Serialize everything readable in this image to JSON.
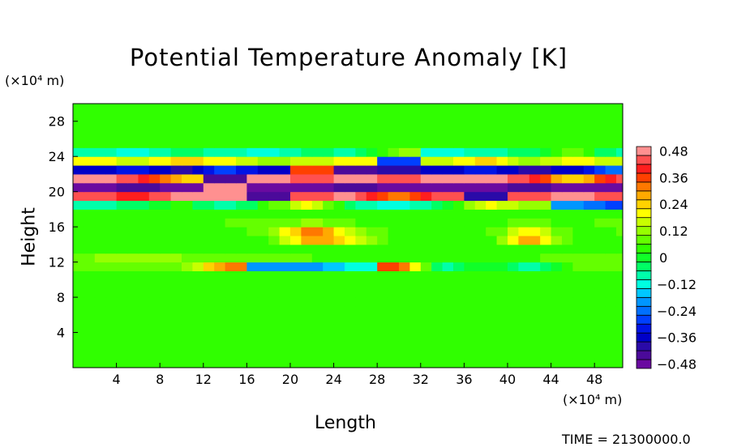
{
  "chart_data": {
    "type": "heatmap",
    "title": "Potential Temperature Anomaly [K]",
    "xlabel": "Length",
    "ylabel": "Height",
    "x_unit": "(×10⁴ m)",
    "y_unit": "(×10⁴ m)",
    "xlim": [
      0,
      50.6
    ],
    "ylim": [
      0,
      30
    ],
    "x_ticks": [
      "4",
      "8",
      "12",
      "16",
      "20",
      "24",
      "28",
      "32",
      "36",
      "40",
      "44",
      "48"
    ],
    "y_ticks": [
      "4",
      "8",
      "12",
      "16",
      "20",
      "24",
      "28"
    ],
    "x": [
      2,
      6,
      10,
      14,
      18,
      22,
      26,
      30,
      34,
      38,
      42,
      46,
      50
    ],
    "y": [
      0.5,
      1.5,
      2.5,
      3.5,
      4.5,
      5.5,
      6.5,
      7.5,
      8.5,
      9.5,
      10.5,
      11.5,
      12.5,
      13.5,
      14.5,
      15.5,
      16.5,
      17.5,
      18.5,
      19.5,
      20.5,
      21.5,
      22.5,
      23.5,
      24.5,
      25.5,
      26.5,
      27.5,
      28.5,
      29.5
    ],
    "z": [
      [
        0.02,
        0.02,
        0.02,
        0.02,
        0.02,
        0.02,
        0.02,
        0.02,
        0.02,
        0.02,
        0.02,
        0.02,
        0.02
      ],
      [
        0.02,
        0.02,
        0.02,
        0.02,
        0.02,
        0.02,
        0.02,
        0.02,
        0.02,
        0.02,
        0.02,
        0.02,
        0.02
      ],
      [
        0.02,
        0.02,
        0.02,
        0.02,
        0.02,
        0.02,
        0.02,
        0.02,
        0.02,
        0.02,
        0.02,
        0.02,
        0.02
      ],
      [
        0.02,
        0.02,
        0.02,
        0.02,
        0.02,
        0.02,
        0.02,
        0.02,
        0.02,
        0.02,
        0.02,
        0.02,
        0.02
      ],
      [
        0.02,
        0.02,
        0.02,
        0.02,
        0.02,
        0.02,
        0.02,
        0.02,
        0.02,
        0.02,
        0.02,
        0.02,
        0.02
      ],
      [
        0.02,
        0.02,
        0.02,
        0.02,
        0.02,
        0.02,
        0.02,
        0.02,
        0.02,
        0.02,
        0.02,
        0.02,
        0.02
      ],
      [
        0.02,
        0.02,
        0.02,
        0.02,
        0.02,
        0.02,
        0.02,
        0.02,
        0.02,
        0.02,
        0.02,
        0.02,
        0.02
      ],
      [
        0.02,
        0.02,
        0.02,
        0.02,
        0.02,
        0.02,
        0.02,
        0.02,
        0.02,
        0.02,
        0.02,
        0.02,
        0.02
      ],
      [
        0.02,
        0.02,
        0.02,
        0.02,
        0.02,
        0.02,
        0.02,
        0.02,
        0.02,
        0.02,
        0.02,
        0.02,
        0.02
      ],
      [
        0.02,
        0.02,
        0.02,
        0.02,
        0.02,
        0.02,
        0.02,
        0.02,
        0.02,
        0.02,
        0.02,
        0.02,
        0.02
      ],
      [
        0.04,
        0.04,
        0.04,
        0.04,
        0.02,
        0.02,
        0.02,
        0.02,
        0.02,
        0.02,
        0.02,
        0.04,
        0.04
      ],
      [
        0.08,
        0.1,
        0.1,
        0.3,
        -0.2,
        -0.2,
        -0.12,
        0.36,
        -0.08,
        0.02,
        -0.08,
        0.06,
        0.08
      ],
      [
        0.1,
        0.12,
        0.1,
        0.08,
        0.06,
        0.06,
        0.04,
        0.04,
        0.04,
        0.04,
        0.04,
        0.1,
        0.1
      ],
      [
        0.02,
        0.02,
        0.02,
        0.04,
        0.04,
        0.06,
        0.04,
        0.02,
        0.02,
        0.02,
        0.04,
        0.04,
        0.02
      ],
      [
        0.02,
        0.02,
        0.04,
        0.04,
        0.06,
        0.3,
        0.2,
        0.02,
        0.02,
        0.02,
        0.3,
        0.04,
        0.02
      ],
      [
        0.02,
        0.02,
        0.04,
        0.04,
        0.08,
        0.36,
        0.12,
        0.04,
        0.02,
        0.04,
        0.2,
        0.04,
        0.06
      ],
      [
        0.04,
        0.04,
        0.04,
        0.06,
        0.06,
        0.12,
        0.06,
        0.04,
        0.04,
        0.04,
        0.08,
        0.04,
        0.08
      ],
      [
        0.04,
        0.06,
        0.04,
        0.04,
        0.04,
        0.06,
        0.04,
        0.04,
        0.04,
        0.04,
        0.04,
        0.04,
        0.04
      ],
      [
        -0.08,
        -0.04,
        0.04,
        -0.12,
        0.04,
        0.2,
        -0.08,
        -0.12,
        -0.04,
        0.2,
        0.12,
        -0.2,
        -0.28
      ],
      [
        0.44,
        0.4,
        0.48,
        0.48,
        -0.44,
        0.44,
        0.48,
        0.28,
        0.44,
        -0.4,
        0.44,
        0.48,
        0.44
      ],
      [
        -0.48,
        -0.44,
        -0.48,
        0.48,
        -0.48,
        -0.48,
        -0.44,
        -0.48,
        -0.48,
        -0.48,
        -0.44,
        -0.48,
        -0.48
      ],
      [
        0.48,
        0.44,
        0.24,
        -0.44,
        0.48,
        0.44,
        0.48,
        0.44,
        0.48,
        0.48,
        0.44,
        0.2,
        0.44
      ],
      [
        -0.36,
        -0.32,
        -0.4,
        -0.28,
        -0.36,
        0.36,
        -0.44,
        -0.4,
        -0.36,
        -0.32,
        -0.4,
        -0.36,
        -0.24
      ],
      [
        0.2,
        0.16,
        0.24,
        0.2,
        0.12,
        0.16,
        0.2,
        -0.28,
        0.16,
        0.24,
        0.12,
        0.2,
        0.16
      ],
      [
        -0.08,
        -0.12,
        -0.04,
        -0.08,
        -0.12,
        -0.04,
        -0.08,
        0.12,
        -0.12,
        -0.08,
        -0.04,
        0.08,
        -0.08
      ],
      [
        0.04,
        0.04,
        0.06,
        0.04,
        0.04,
        0.04,
        0.04,
        0.04,
        0.04,
        0.04,
        0.04,
        0.04,
        0.04
      ],
      [
        0.02,
        0.02,
        0.02,
        0.02,
        0.02,
        0.02,
        0.02,
        0.02,
        0.02,
        0.02,
        0.02,
        0.02,
        0.02
      ],
      [
        0.02,
        0.02,
        0.02,
        0.02,
        0.02,
        0.02,
        0.02,
        0.02,
        0.02,
        0.02,
        0.02,
        0.02,
        0.02
      ],
      [
        0.02,
        0.02,
        0.02,
        0.02,
        0.02,
        0.02,
        0.02,
        0.02,
        0.02,
        0.02,
        0.02,
        0.02,
        0.02
      ],
      [
        0.02,
        0.02,
        0.02,
        0.02,
        0.02,
        0.02,
        0.02,
        0.02,
        0.02,
        0.02,
        0.02,
        0.02,
        0.02
      ]
    ],
    "colorbar": {
      "labels": [
        "0.48",
        "0.36",
        "0.24",
        "0.12",
        "0",
        "−0.12",
        "−0.24",
        "−0.36",
        "−0.48"
      ],
      "min": -0.48,
      "max": 0.48,
      "step": 0.04,
      "colors": [
        "#6a0aa0",
        "#4b0a9a",
        "#2a0aa8",
        "#0000c8",
        "#0014e6",
        "#0040ff",
        "#0070ff",
        "#0096ff",
        "#00c8ff",
        "#00ffe0",
        "#00ffaa",
        "#00ff64",
        "#10ff28",
        "#30ff00",
        "#64ff00",
        "#96ff00",
        "#c8ff00",
        "#ffff00",
        "#ffd200",
        "#ffaa00",
        "#ff7800",
        "#ff4000",
        "#ff1e1e",
        "#ff5050",
        "#ff9090"
      ]
    },
    "legend": "right",
    "grid": false
  },
  "footer": {
    "time_text": "TIME = 21300000.0"
  }
}
